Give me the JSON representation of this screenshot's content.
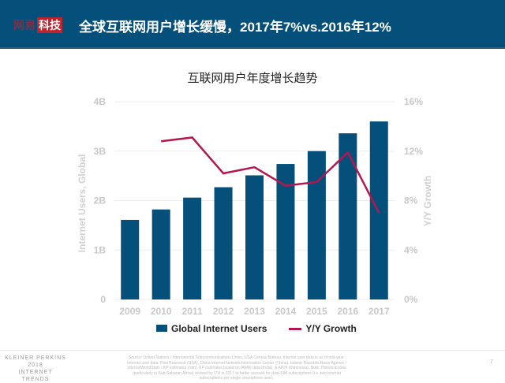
{
  "header": {
    "logo_part1": "网易",
    "logo_part2": "科技",
    "title": "全球互联网用户增长缓慢，2017年7%vs.2016年12%"
  },
  "chart_data": {
    "type": "bar+line",
    "title": "互联网用户年度增长趋势",
    "categories": [
      "2009",
      "2010",
      "2011",
      "2012",
      "2013",
      "2014",
      "2015",
      "2016",
      "2017"
    ],
    "series": [
      {
        "name": "Global Internet Users",
        "type": "bar",
        "axis": "left",
        "color": "#04507a",
        "values": [
          1.61,
          1.82,
          2.06,
          2.27,
          2.51,
          2.74,
          3.0,
          3.36,
          3.6
        ]
      },
      {
        "name": "Y/Y Growth",
        "type": "line",
        "axis": "right",
        "color": "#b5164f",
        "values": [
          null,
          12.8,
          13.1,
          10.2,
          10.7,
          9.2,
          9.5,
          11.9,
          7.0
        ]
      }
    ],
    "ylabel": "Internet Users, Global",
    "ylim": [
      0,
      4
    ],
    "yticks": [
      "0",
      "1B",
      "2B",
      "3B",
      "4B"
    ],
    "y2label": "Y/Y Growth",
    "y2lim": [
      0,
      16
    ],
    "y2ticks": [
      "0%",
      "4%",
      "8%",
      "12%",
      "16%"
    ],
    "grid": true,
    "legend": "bottom"
  },
  "footer": {
    "brand": [
      "KLEINER PERKINS",
      "2018",
      "INTERNET TRENDS"
    ],
    "source": "Source: United Nations / International Telecommunications Union, USA Census Bureau. Internet user data is as of mid-year. Internet user data: Pew Research (USA), China Internet Network Information Center (China), Islamic Republic News Agency / InternetWorldStats / KP estimates (Iran), KP estimates based on IAMAI data (India), & APJII (Indonesia). Note: Historical data (particularly in Sub-Saharan Africa) revised by ITU in 2017 to better account for dual-SIM subscriptions (i.e. two Internet subscriptions per single smartphone user).",
    "page": "7"
  }
}
